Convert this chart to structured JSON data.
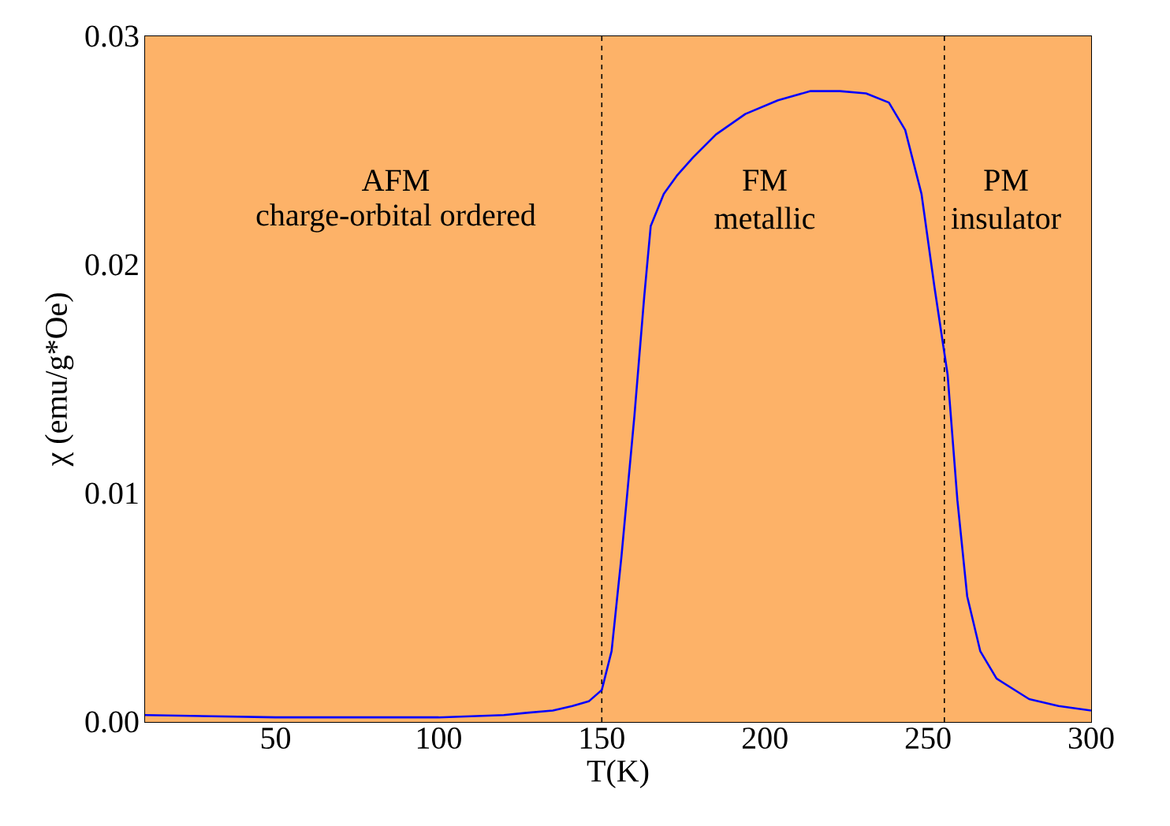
{
  "chart_data": {
    "type": "line",
    "xlabel": "T(K)",
    "ylabel": "χ (emu/g*Oe)",
    "x": [
      10,
      50,
      100,
      120,
      127,
      135,
      141,
      146,
      150,
      153,
      156,
      160,
      163,
      165,
      169,
      173,
      178,
      185,
      194,
      204,
      214,
      223,
      231,
      238,
      243,
      248,
      252,
      256,
      259,
      262,
      266,
      271,
      281,
      290,
      300
    ],
    "series": [
      {
        "color": "#0000ff",
        "values": [
          0.0003,
          0.0002,
          0.0002,
          0.0003,
          0.0004,
          0.0005,
          0.0007,
          0.0009,
          0.0014,
          0.0031,
          0.0072,
          0.0134,
          0.0186,
          0.0217,
          0.0231,
          0.0239,
          0.0247,
          0.0257,
          0.0266,
          0.0272,
          0.0276,
          0.0276,
          0.0275,
          0.0271,
          0.0259,
          0.0231,
          0.019,
          0.0152,
          0.0097,
          0.0055,
          0.0031,
          0.0019,
          0.001,
          0.0007,
          0.0005
        ]
      }
    ],
    "xlim": [
      10,
      300
    ],
    "xticks": [
      50,
      100,
      150,
      200,
      250,
      300
    ],
    "ylim": [
      0,
      0.03
    ],
    "yticks": [
      {
        "value": 0,
        "label": "0.00"
      },
      {
        "value": 0.01,
        "label": "0.01"
      },
      {
        "value": 0.02,
        "label": "0.02"
      },
      {
        "value": 0.03,
        "label": "0.03"
      }
    ],
    "ref_lines": [
      {
        "axis": "x",
        "value": 150,
        "color": "#000000",
        "line_style": "dashed"
      },
      {
        "axis": "x",
        "value": 255,
        "color": "#000000",
        "line_style": "dashed"
      }
    ],
    "bands": [
      {
        "axis": "x",
        "from": 10,
        "to": 300,
        "color": "#fdb268"
      }
    ],
    "annotations": [
      "AFM",
      "charge-orbital ordered",
      "FM",
      "metallic",
      "PM",
      "insulator"
    ],
    "marker": "none",
    "line_style": "solid"
  }
}
